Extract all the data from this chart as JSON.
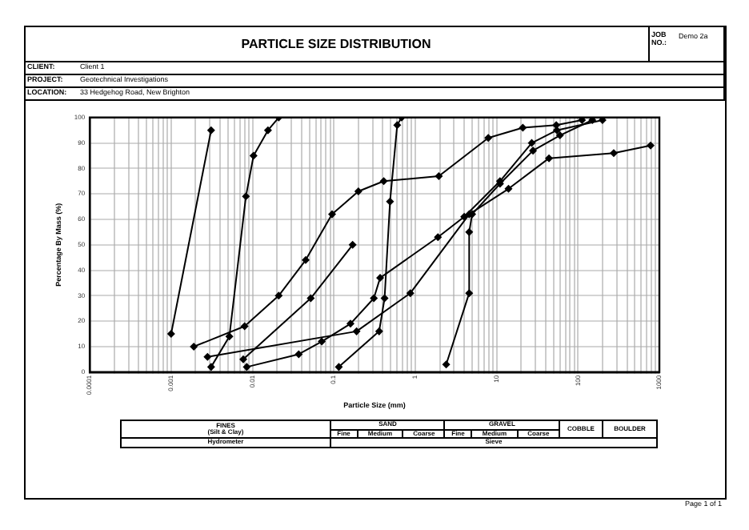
{
  "chart_data": {
    "type": "line",
    "title": "PARTICLE SIZE DISTRIBUTION",
    "xlabel": "Particle Size (mm)",
    "ylabel": "Percentage By Mass (%)",
    "log": "x",
    "grid": true,
    "legend": false,
    "marker": "diamond",
    "line_style": "solid",
    "xlim": [
      0.0001,
      1000
    ],
    "ylim": [
      0,
      100
    ],
    "yticks": [
      0,
      10,
      20,
      30,
      40,
      50,
      60,
      70,
      80,
      90,
      100
    ],
    "xticks": [
      0.0001,
      {
        "value": 0.0002,
        "label": null
      },
      {
        "value": 0.0003,
        "label": null
      },
      {
        "value": 0.0004,
        "label": null
      },
      {
        "value": 0.0005,
        "label": null
      },
      {
        "value": 0.0006,
        "label": null
      },
      {
        "value": 0.0007,
        "label": null
      },
      {
        "value": 0.0008,
        "label": null
      },
      {
        "value": 0.0009,
        "label": null
      },
      0.001,
      {
        "value": 0.002,
        "label": null
      },
      {
        "value": 0.003,
        "label": null
      },
      {
        "value": 0.004,
        "label": null
      },
      {
        "value": 0.005,
        "label": null
      },
      {
        "value": 0.006,
        "label": null
      },
      {
        "value": 0.007,
        "label": null
      },
      {
        "value": 0.008,
        "label": null
      },
      {
        "value": 0.009,
        "label": null
      },
      0.01,
      {
        "value": 0.02,
        "label": null
      },
      {
        "value": 0.03,
        "label": null
      },
      {
        "value": 0.04,
        "label": null
      },
      {
        "value": 0.05,
        "label": null
      },
      {
        "value": 0.06,
        "label": null
      },
      {
        "value": 0.07,
        "label": null
      },
      {
        "value": 0.08,
        "label": null
      },
      {
        "value": 0.09,
        "label": null
      },
      0.1,
      {
        "value": 0.2,
        "label": null
      },
      {
        "value": 0.3,
        "label": null
      },
      {
        "value": 0.4,
        "label": null
      },
      {
        "value": 0.5,
        "label": null
      },
      {
        "value": 0.6,
        "label": null
      },
      {
        "value": 0.7,
        "label": null
      },
      {
        "value": 0.8,
        "label": null
      },
      {
        "value": 0.9,
        "label": null
      },
      1,
      {
        "value": 2,
        "label": null
      },
      {
        "value": 3,
        "label": null
      },
      {
        "value": 4,
        "label": null
      },
      {
        "value": 5,
        "label": null
      },
      {
        "value": 6,
        "label": null
      },
      {
        "value": 7,
        "label": null
      },
      {
        "value": 8,
        "label": null
      },
      {
        "value": 9,
        "label": null
      },
      10,
      {
        "value": 20,
        "label": null
      },
      {
        "value": 30,
        "label": null
      },
      {
        "value": 40,
        "label": null
      },
      {
        "value": 50,
        "label": null
      },
      {
        "value": 60,
        "label": null
      },
      {
        "value": 70,
        "label": null
      },
      {
        "value": 80,
        "label": null
      },
      {
        "value": 90,
        "label": null
      },
      100,
      {
        "value": 200,
        "label": null
      },
      {
        "value": 300,
        "label": null
      },
      {
        "value": 400,
        "label": null
      },
      {
        "value": 500,
        "label": null
      },
      {
        "value": 600,
        "label": null
      },
      {
        "value": 700,
        "label": null
      },
      {
        "value": 800,
        "label": null
      },
      {
        "value": 900,
        "label": null
      },
      1000
    ],
    "series": [
      {
        "color": "#000000",
        "x": [
          0.001,
          0.0031
        ],
        "values": [
          15,
          95
        ]
      },
      {
        "color": "#000000",
        "x": [
          0.0031,
          0.0052,
          0.0083,
          0.0103,
          0.0155,
          0.021
        ],
        "values": [
          2,
          14,
          69,
          85,
          95,
          100
        ]
      },
      {
        "color": "#000000",
        "x": [
          0.0019,
          0.008,
          0.021,
          0.045,
          0.095,
          0.2,
          0.41,
          1.95,
          7.9,
          21,
          54,
          112
        ],
        "values": [
          10,
          18,
          30,
          44,
          62,
          71,
          75,
          77,
          92,
          96,
          97,
          99
        ]
      },
      {
        "color": "#000000",
        "x": [
          0.0028,
          0.19,
          0.87,
          4.6,
          14,
          44,
          275,
          780
        ],
        "values": [
          6,
          16,
          31,
          62,
          72,
          84,
          86,
          89
        ]
      },
      {
        "color": "#000000",
        "x": [
          0.0077,
          0.052,
          0.17
        ],
        "values": [
          5,
          29,
          50
        ]
      },
      {
        "color": "#000000",
        "x": [
          0.0085,
          0.037,
          0.071,
          0.16,
          0.31,
          0.37,
          1.9,
          4,
          11,
          27,
          55,
          200
        ],
        "values": [
          2,
          7,
          12,
          19,
          29,
          37,
          53,
          61,
          75,
          90,
          95,
          99
        ]
      },
      {
        "color": "#000000",
        "x": [
          0.115,
          0.36,
          0.42,
          0.49,
          0.6,
          0.68
        ],
        "values": [
          2,
          16,
          29,
          67,
          97,
          100
        ]
      },
      {
        "color": "#000000",
        "x": [
          2.4,
          4.6,
          4.6,
          5,
          11,
          28,
          60,
          150
        ],
        "values": [
          3,
          31,
          55,
          62,
          74,
          87,
          93,
          99
        ]
      }
    ],
    "annotations": [
      "JOB NO.:",
      "Demo 2a",
      "CLIENT:",
      "Client 1",
      "PROJECT:",
      "Geotechnical Investigations",
      "LOCATION:",
      "33 Hedgehog Road, New Brighton",
      "FINES\n(Silt & Clay)",
      "SAND",
      "GRAVEL",
      "COBBLE",
      "BOULDER",
      "Fine",
      "Medium",
      "Coarse",
      "Fine",
      "Medium",
      "Coarse",
      "Hydrometer",
      "Sieve",
      "Page 1 of 1"
    ]
  }
}
